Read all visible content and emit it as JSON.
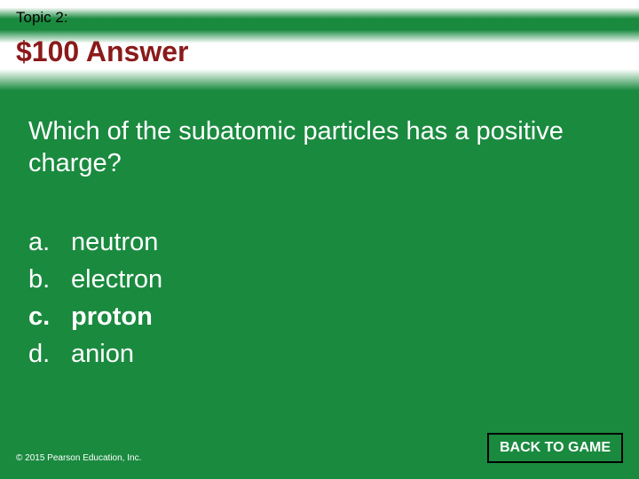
{
  "header": {
    "topic_label": "Topic 2:",
    "title": "$100 Answer",
    "title_color": "#8b1a1a"
  },
  "question": "Which of the subatomic particles has a positive charge?",
  "options": [
    {
      "letter": "a.",
      "text": "neutron",
      "is_answer": false
    },
    {
      "letter": "b.",
      "text": "electron",
      "is_answer": false
    },
    {
      "letter": "c.",
      "text": "proton",
      "is_answer": true
    },
    {
      "letter": "d.",
      "text": "anion",
      "is_answer": false
    }
  ],
  "footer": {
    "copyright": "© 2015 Pearson Education, Inc.",
    "back_button": "BACK TO GAME"
  },
  "colors": {
    "background": "#1a8a3f",
    "text_light": "#ffffff",
    "button_border": "#000000"
  },
  "typography": {
    "topic_fontsize": 17,
    "title_fontsize": 32,
    "body_fontsize": 29,
    "copyright_fontsize": 10,
    "button_fontsize": 16
  }
}
